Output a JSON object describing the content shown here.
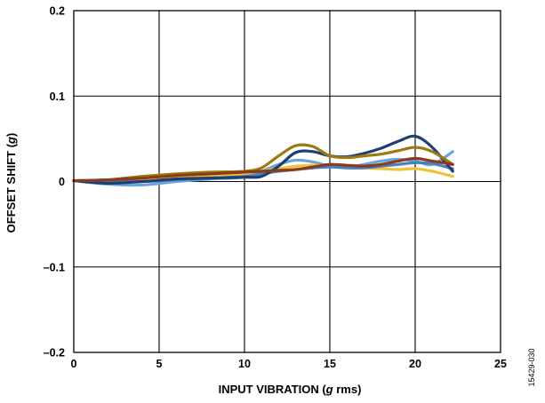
{
  "chart_data": {
    "type": "line",
    "title": "",
    "xlabel_parts": [
      "INPUT VIBRATION (",
      "g",
      " rms)"
    ],
    "ylabel_parts": [
      "OFFSET SHIFT (",
      "g",
      ")"
    ],
    "xlim": [
      0,
      25
    ],
    "ylim": [
      -0.2,
      0.2
    ],
    "x_ticks": [
      0,
      5,
      10,
      15,
      20,
      25
    ],
    "x_tick_labels": [
      "0",
      "5",
      "10",
      "15",
      "20",
      "25"
    ],
    "y_ticks": [
      -0.2,
      -0.1,
      0,
      0.1,
      0.2
    ],
    "y_tick_labels": [
      "–0.2",
      "–0.1",
      "0",
      "0.1",
      "0.2"
    ],
    "grid": true,
    "legend": "none",
    "figure_id": "15429-030",
    "series": [
      {
        "color": "#6aa6d9",
        "x": [
          0,
          2,
          4,
          6,
          8,
          10,
          11,
          12,
          13,
          14,
          15,
          16,
          17,
          18,
          19,
          20,
          21,
          22.2
        ],
        "y": [
          0.001,
          -0.003,
          -0.004,
          0.0,
          0.003,
          0.005,
          0.012,
          0.02,
          0.025,
          0.023,
          0.018,
          0.017,
          0.02,
          0.024,
          0.026,
          0.024,
          0.02,
          0.035
        ]
      },
      {
        "color": "#f3c233",
        "x": [
          0,
          2,
          4,
          6,
          8,
          10,
          11,
          12,
          13,
          14,
          15,
          16,
          17,
          18,
          19,
          20,
          21,
          22.2
        ],
        "y": [
          0.001,
          0.0,
          0.002,
          0.004,
          0.006,
          0.009,
          0.012,
          0.015,
          0.018,
          0.019,
          0.018,
          0.017,
          0.016,
          0.015,
          0.014,
          0.015,
          0.012,
          0.006
        ]
      },
      {
        "color": "#4a7dc4",
        "x": [
          0,
          2,
          4,
          6,
          8,
          10,
          11,
          12,
          13,
          14,
          15,
          16,
          17,
          18,
          19,
          20,
          21,
          22.2
        ],
        "y": [
          0.001,
          0.0,
          0.0,
          0.002,
          0.004,
          0.006,
          0.009,
          0.012,
          0.014,
          0.016,
          0.017,
          0.016,
          0.016,
          0.018,
          0.02,
          0.022,
          0.021,
          0.015
        ]
      },
      {
        "color": "#1f3f73",
        "x": [
          0,
          2,
          4,
          6,
          8,
          10,
          11,
          12,
          13,
          14,
          15,
          16,
          17,
          18,
          19,
          20,
          21,
          22.2
        ],
        "y": [
          0.001,
          -0.002,
          0.0,
          0.003,
          0.004,
          0.005,
          0.006,
          0.018,
          0.034,
          0.035,
          0.03,
          0.029,
          0.033,
          0.039,
          0.047,
          0.053,
          0.04,
          0.012
        ]
      },
      {
        "color": "#9c7a12",
        "x": [
          0,
          2,
          4,
          6,
          8,
          10,
          11,
          12,
          13,
          14,
          15,
          16,
          17,
          18,
          19,
          20,
          21,
          22.2
        ],
        "y": [
          0.001,
          0.002,
          0.006,
          0.009,
          0.011,
          0.012,
          0.016,
          0.03,
          0.042,
          0.041,
          0.03,
          0.028,
          0.03,
          0.032,
          0.036,
          0.04,
          0.035,
          0.02
        ]
      },
      {
        "color": "#8b3a1a",
        "x": [
          0,
          2,
          4,
          6,
          8,
          10,
          11,
          12,
          13,
          14,
          15,
          16,
          17,
          18,
          19,
          20,
          21,
          22.2
        ],
        "y": [
          0.001,
          0.002,
          0.004,
          0.007,
          0.009,
          0.011,
          0.012,
          0.013,
          0.014,
          0.017,
          0.02,
          0.019,
          0.018,
          0.02,
          0.024,
          0.027,
          0.024,
          0.02
        ]
      }
    ]
  }
}
